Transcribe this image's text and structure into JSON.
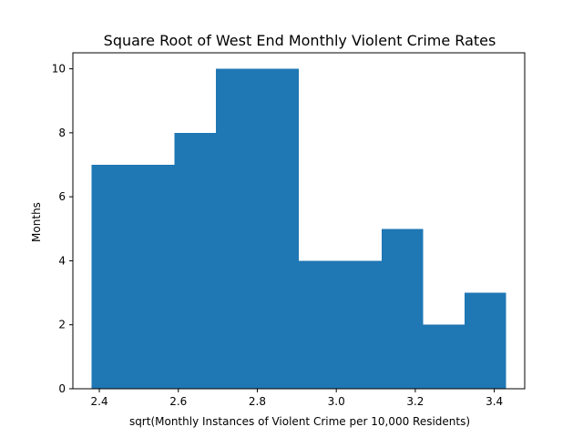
{
  "chart_data": {
    "type": "bar",
    "title": "Square Root of West End Monthly Violent Crime Rates",
    "xlabel": "sqrt(Monthly Instances of Violent Crime per 10,000 Residents)",
    "ylabel": "Months",
    "bins": [
      {
        "x0": 2.38,
        "x1": 2.485,
        "count": 7
      },
      {
        "x0": 2.485,
        "x1": 2.59,
        "count": 7
      },
      {
        "x0": 2.59,
        "x1": 2.695,
        "count": 8
      },
      {
        "x0": 2.695,
        "x1": 2.8,
        "count": 10
      },
      {
        "x0": 2.8,
        "x1": 2.905,
        "count": 10
      },
      {
        "x0": 2.905,
        "x1": 3.01,
        "count": 4
      },
      {
        "x0": 3.01,
        "x1": 3.115,
        "count": 4
      },
      {
        "x0": 3.115,
        "x1": 3.22,
        "count": 5
      },
      {
        "x0": 3.22,
        "x1": 3.325,
        "count": 2
      },
      {
        "x0": 3.325,
        "x1": 3.43,
        "count": 3
      }
    ],
    "xlim": [
      2.333,
      3.477
    ],
    "ylim": [
      0,
      10.5
    ],
    "xticks": [
      "2.4",
      "2.6",
      "2.8",
      "3.0",
      "3.2",
      "3.4"
    ],
    "yticks": [
      "0",
      "2",
      "4",
      "6",
      "8",
      "10"
    ],
    "bar_color": "#1f77b4",
    "grid": false,
    "legend": "none"
  }
}
